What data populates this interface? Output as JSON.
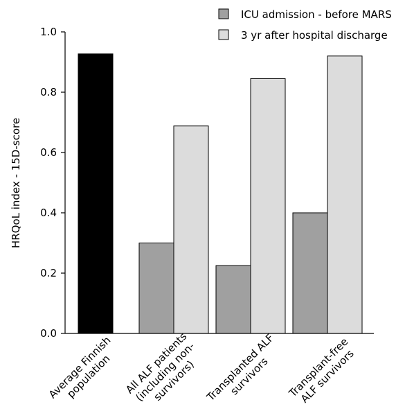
{
  "chart_data": {
    "type": "bar",
    "title": "",
    "xlabel": "",
    "ylabel": "HRQoL index - 15D-score",
    "ylim": [
      0,
      1.0
    ],
    "yticks": [
      "0.0",
      "0.2",
      "0.4",
      "0.6",
      "0.8",
      "1.0"
    ],
    "grid": false,
    "legend_position": "top-right",
    "categories": [
      [
        "Average Finnish",
        "population"
      ],
      [
        "All ALF patients",
        "(including non-",
        "survivors)"
      ],
      [
        "Transplanted ALF",
        "survivors"
      ],
      [
        "Transplant-free",
        "ALF survivors"
      ]
    ],
    "reference": {
      "category_index": 0,
      "value": 0.927,
      "color": "#000000"
    },
    "series": [
      {
        "name": "ICU admission - before MARS",
        "color": "#a0a0a0",
        "values": [
          null,
          0.3,
          0.225,
          0.4
        ]
      },
      {
        "name": "3 yr after hospital discharge",
        "color": "#dcdcdc",
        "values": [
          null,
          0.688,
          0.845,
          0.92
        ]
      }
    ]
  }
}
